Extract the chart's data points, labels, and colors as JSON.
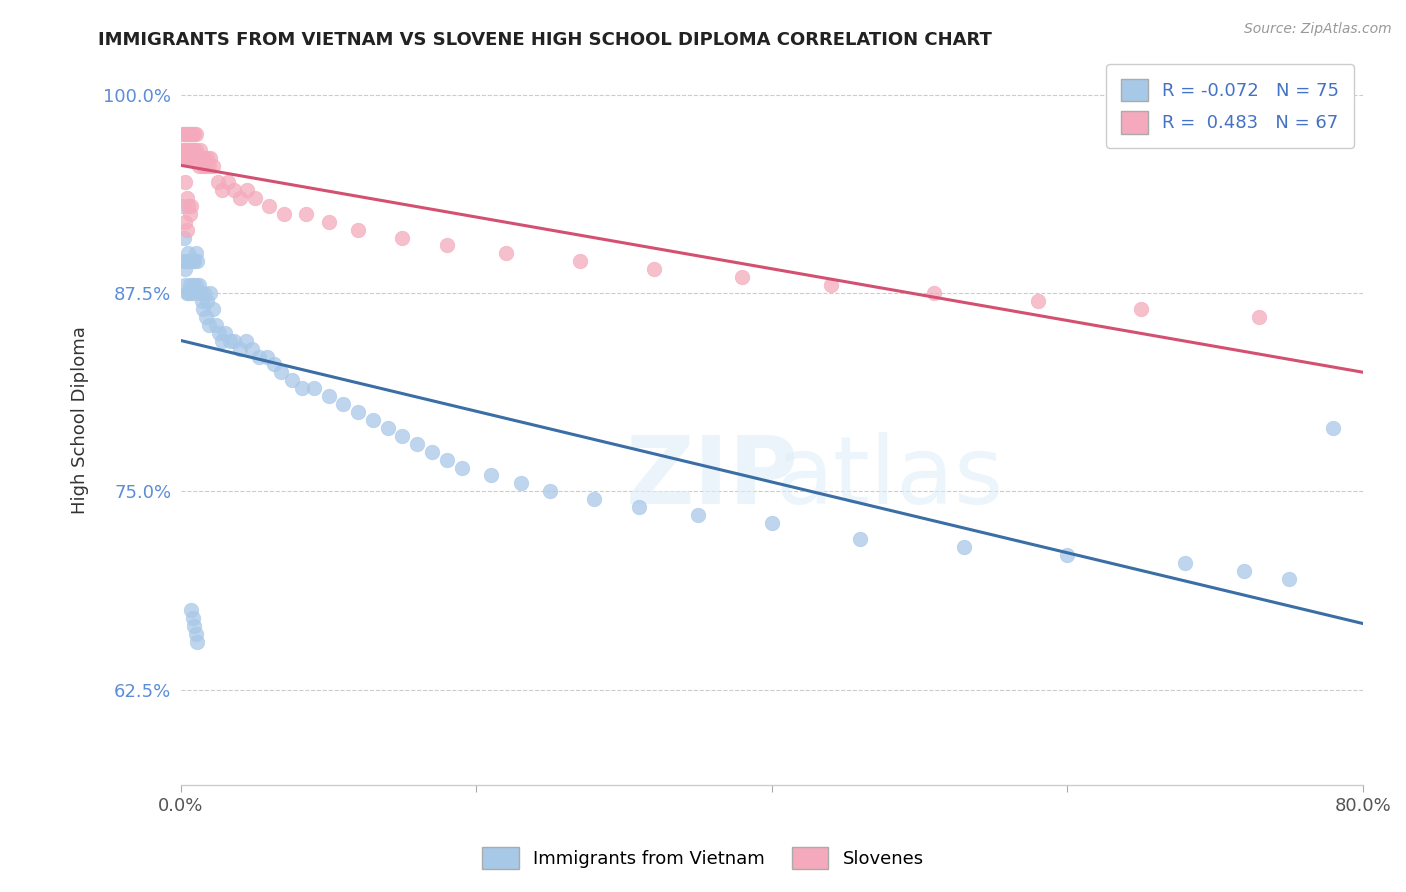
{
  "title": "IMMIGRANTS FROM VIETNAM VS SLOVENE HIGH SCHOOL DIPLOMA CORRELATION CHART",
  "source": "Source: ZipAtlas.com",
  "ylabel": "High School Diploma",
  "xlim": [
    0.0,
    0.8
  ],
  "ylim": [
    0.565,
    1.025
  ],
  "xticks": [
    0.0,
    0.2,
    0.4,
    0.6,
    0.8
  ],
  "xticklabels": [
    "0.0%",
    "",
    "",
    "",
    "80.0%"
  ],
  "yticks": [
    0.625,
    0.75,
    0.875,
    1.0
  ],
  "yticklabels": [
    "62.5%",
    "75.0%",
    "87.5%",
    "100.0%"
  ],
  "blue_color": "#A8C8E8",
  "pink_color": "#F4AABC",
  "blue_line_color": "#3A6EA5",
  "pink_line_color": "#D45070",
  "background_color": "#ffffff",
  "vietnam_x": [
    0.001,
    0.002,
    0.002,
    0.003,
    0.003,
    0.004,
    0.004,
    0.005,
    0.005,
    0.006,
    0.006,
    0.007,
    0.007,
    0.008,
    0.008,
    0.009,
    0.009,
    0.01,
    0.01,
    0.011,
    0.012,
    0.013,
    0.014,
    0.015,
    0.016,
    0.017,
    0.018,
    0.019,
    0.02,
    0.022,
    0.024,
    0.026,
    0.028,
    0.03,
    0.033,
    0.036,
    0.04,
    0.044,
    0.048,
    0.053,
    0.058,
    0.063,
    0.068,
    0.075,
    0.082,
    0.09,
    0.1,
    0.11,
    0.12,
    0.13,
    0.14,
    0.15,
    0.16,
    0.17,
    0.18,
    0.19,
    0.21,
    0.23,
    0.25,
    0.28,
    0.31,
    0.35,
    0.4,
    0.46,
    0.53,
    0.6,
    0.68,
    0.72,
    0.75,
    0.78,
    0.007,
    0.008,
    0.009,
    0.01,
    0.011
  ],
  "vietnam_y": [
    0.93,
    0.91,
    0.895,
    0.89,
    0.88,
    0.895,
    0.875,
    0.9,
    0.875,
    0.895,
    0.88,
    0.895,
    0.875,
    0.895,
    0.88,
    0.895,
    0.875,
    0.9,
    0.88,
    0.895,
    0.88,
    0.875,
    0.87,
    0.865,
    0.875,
    0.86,
    0.87,
    0.855,
    0.875,
    0.865,
    0.855,
    0.85,
    0.845,
    0.85,
    0.845,
    0.845,
    0.84,
    0.845,
    0.84,
    0.835,
    0.835,
    0.83,
    0.825,
    0.82,
    0.815,
    0.815,
    0.81,
    0.805,
    0.8,
    0.795,
    0.79,
    0.785,
    0.78,
    0.775,
    0.77,
    0.765,
    0.76,
    0.755,
    0.75,
    0.745,
    0.74,
    0.735,
    0.73,
    0.72,
    0.715,
    0.71,
    0.705,
    0.7,
    0.695,
    0.79,
    0.675,
    0.67,
    0.665,
    0.66,
    0.655
  ],
  "slovene_x": [
    0.001,
    0.001,
    0.001,
    0.002,
    0.002,
    0.002,
    0.003,
    0.003,
    0.003,
    0.004,
    0.004,
    0.004,
    0.005,
    0.005,
    0.005,
    0.006,
    0.006,
    0.007,
    0.007,
    0.007,
    0.008,
    0.008,
    0.009,
    0.009,
    0.01,
    0.01,
    0.011,
    0.012,
    0.013,
    0.014,
    0.015,
    0.016,
    0.017,
    0.018,
    0.019,
    0.02,
    0.022,
    0.025,
    0.028,
    0.032,
    0.036,
    0.04,
    0.045,
    0.05,
    0.06,
    0.07,
    0.085,
    0.1,
    0.12,
    0.15,
    0.18,
    0.22,
    0.27,
    0.32,
    0.38,
    0.44,
    0.51,
    0.58,
    0.65,
    0.73,
    0.003,
    0.004,
    0.005,
    0.006,
    0.007,
    0.003,
    0.004
  ],
  "slovene_y": [
    0.975,
    0.965,
    0.96,
    0.975,
    0.965,
    0.96,
    0.975,
    0.965,
    0.96,
    0.975,
    0.965,
    0.96,
    0.975,
    0.965,
    0.96,
    0.975,
    0.965,
    0.975,
    0.965,
    0.96,
    0.975,
    0.965,
    0.975,
    0.965,
    0.975,
    0.965,
    0.96,
    0.955,
    0.965,
    0.96,
    0.955,
    0.96,
    0.955,
    0.96,
    0.955,
    0.96,
    0.955,
    0.945,
    0.94,
    0.945,
    0.94,
    0.935,
    0.94,
    0.935,
    0.93,
    0.925,
    0.925,
    0.92,
    0.915,
    0.91,
    0.905,
    0.9,
    0.895,
    0.89,
    0.885,
    0.88,
    0.875,
    0.87,
    0.865,
    0.86,
    0.945,
    0.935,
    0.93,
    0.925,
    0.93,
    0.92,
    0.915
  ]
}
